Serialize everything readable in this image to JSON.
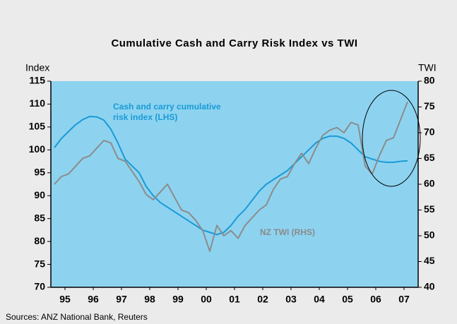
{
  "chart_data": {
    "type": "line",
    "title": "Cumulative Cash and Carry Risk Index vs TWI",
    "ylabel": "Index",
    "y2label": "TWI",
    "source": "Sources: ANZ National Bank, Reuters",
    "annotations": [
      "Cash and carry cumulative",
      "risk index (LHS)",
      "NZ TWI (RHS)"
    ],
    "xlim": [
      1995,
      2008
    ],
    "xticks": [
      {
        "value": 1995.5,
        "label": "95"
      },
      {
        "value": 1996.5,
        "label": "96"
      },
      {
        "value": 1997.5,
        "label": "97"
      },
      {
        "value": 1998.5,
        "label": "98"
      },
      {
        "value": 1999.5,
        "label": "99"
      },
      {
        "value": 2000.5,
        "label": "00"
      },
      {
        "value": 2001.5,
        "label": "01"
      },
      {
        "value": 2002.5,
        "label": "02"
      },
      {
        "value": 2003.5,
        "label": "03"
      },
      {
        "value": 2004.5,
        "label": "04"
      },
      {
        "value": 2005.5,
        "label": "05"
      },
      {
        "value": 2006.5,
        "label": "06"
      },
      {
        "value": 2007.5,
        "label": "07"
      }
    ],
    "ylim": [
      70,
      115
    ],
    "yticks": [
      70,
      75,
      80,
      85,
      90,
      95,
      100,
      105,
      110,
      115
    ],
    "y2lim": [
      40,
      80
    ],
    "y2ticks": [
      40,
      45,
      50,
      55,
      60,
      65,
      70,
      75,
      80
    ],
    "x": [
      1995.125,
      1995.375,
      1995.625,
      1995.875,
      1996.125,
      1996.375,
      1996.625,
      1996.875,
      1997.125,
      1997.375,
      1997.625,
      1997.875,
      1998.125,
      1998.375,
      1998.625,
      1998.875,
      1999.125,
      1999.375,
      1999.625,
      1999.875,
      2000.125,
      2000.375,
      2000.625,
      2000.875,
      2001.125,
      2001.375,
      2001.625,
      2001.875,
      2002.125,
      2002.375,
      2002.625,
      2002.875,
      2003.125,
      2003.375,
      2003.625,
      2003.875,
      2004.125,
      2004.375,
      2004.625,
      2004.875,
      2005.125,
      2005.375,
      2005.625,
      2005.875,
      2006.125,
      2006.375,
      2006.625,
      2006.875,
      2007.125,
      2007.375,
      2007.625
    ],
    "series": [
      {
        "color": "#1a9ad6",
        "axis": "y",
        "values": [
          100.5,
          102.5,
          104,
          105.5,
          106.6,
          107.3,
          107.2,
          106.5,
          104.5,
          101.5,
          98,
          96.5,
          95,
          92,
          90,
          88.5,
          87.5,
          86.5,
          85.5,
          84.5,
          83.5,
          82.5,
          82,
          81.5,
          82,
          83.5,
          85.5,
          87,
          89,
          91,
          92.5,
          93.5,
          94.5,
          95.5,
          97,
          98.5,
          100,
          101.5,
          102.5,
          103,
          103,
          102.5,
          101.5,
          100,
          98.5,
          98,
          97.5,
          97.3,
          97.3,
          97.5,
          97.6
        ]
      },
      {
        "color": "#8c8c8c",
        "axis": "y2",
        "values": [
          60,
          61.5,
          62,
          63.5,
          65,
          65.5,
          67,
          68.5,
          68,
          65,
          64.5,
          62.5,
          60.5,
          58,
          57,
          58.5,
          60,
          57.5,
          55,
          54.5,
          53,
          51,
          47,
          52,
          50,
          51,
          49.5,
          52,
          53.5,
          55,
          56,
          59,
          61,
          61.5,
          64,
          66,
          64,
          67,
          69.5,
          70.5,
          71,
          70,
          72,
          71.5,
          63.5,
          62,
          65.5,
          68.5,
          69,
          72.5,
          76
        ]
      }
    ]
  }
}
